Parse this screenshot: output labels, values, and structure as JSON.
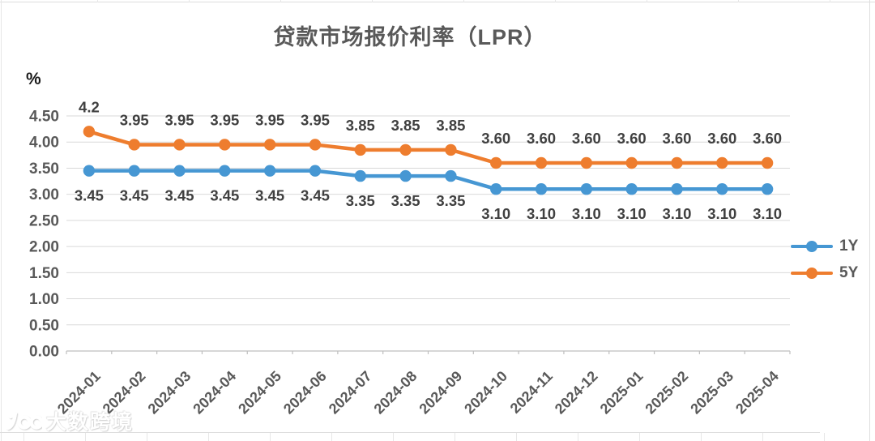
{
  "title": "贷款市场报价利率（LPR）",
  "y_unit": "%",
  "chart_data": {
    "type": "line",
    "categories": [
      "2024-01",
      "2024-02",
      "2024-03",
      "2024-04",
      "2024-05",
      "2024-06",
      "2024-07",
      "2024-08",
      "2024-09",
      "2024-10",
      "2024-11",
      "2024-12",
      "2025-01",
      "2025-02",
      "2025-03",
      "2025-04"
    ],
    "series": [
      {
        "name": "1Y",
        "color": "#4697D3",
        "values": [
          3.45,
          3.45,
          3.45,
          3.45,
          3.45,
          3.45,
          3.35,
          3.35,
          3.35,
          3.1,
          3.1,
          3.1,
          3.1,
          3.1,
          3.1,
          3.1
        ],
        "point_labels": [
          "3.45",
          "3.45",
          "3.45",
          "3.45",
          "3.45",
          "3.45",
          "3.35",
          "3.35",
          "3.35",
          "3.10",
          "3.10",
          "3.10",
          "3.10",
          "3.10",
          "3.10",
          "3.10"
        ],
        "label_side": "below"
      },
      {
        "name": "5Y",
        "color": "#EE7D2E",
        "values": [
          4.2,
          3.95,
          3.95,
          3.95,
          3.95,
          3.95,
          3.85,
          3.85,
          3.85,
          3.6,
          3.6,
          3.6,
          3.6,
          3.6,
          3.6,
          3.6
        ],
        "point_labels": [
          "4.2",
          "3.95",
          "3.95",
          "3.95",
          "3.95",
          "3.95",
          "3.85",
          "3.85",
          "3.85",
          "3.60",
          "3.60",
          "3.60",
          "3.60",
          "3.60",
          "3.60",
          "3.60"
        ],
        "label_side": "above"
      }
    ],
    "ylim": [
      0,
      4.5
    ],
    "ytick_step": 0.5,
    "ytick_labels": [
      "0.00",
      "0.50",
      "1.00",
      "1.50",
      "2.00",
      "2.50",
      "3.00",
      "3.50",
      "4.00",
      "4.50"
    ],
    "grid": "horizontal",
    "legend_position": "right",
    "marker": "circle"
  },
  "colors": {
    "title_text": "#595959",
    "axis_text": "#595959",
    "data_label_text": "#404040",
    "gridline": "#d9d9d9",
    "axis_line": "#bfbfbf"
  },
  "watermark": {
    "logo": "100",
    "text": "大数跨境"
  }
}
